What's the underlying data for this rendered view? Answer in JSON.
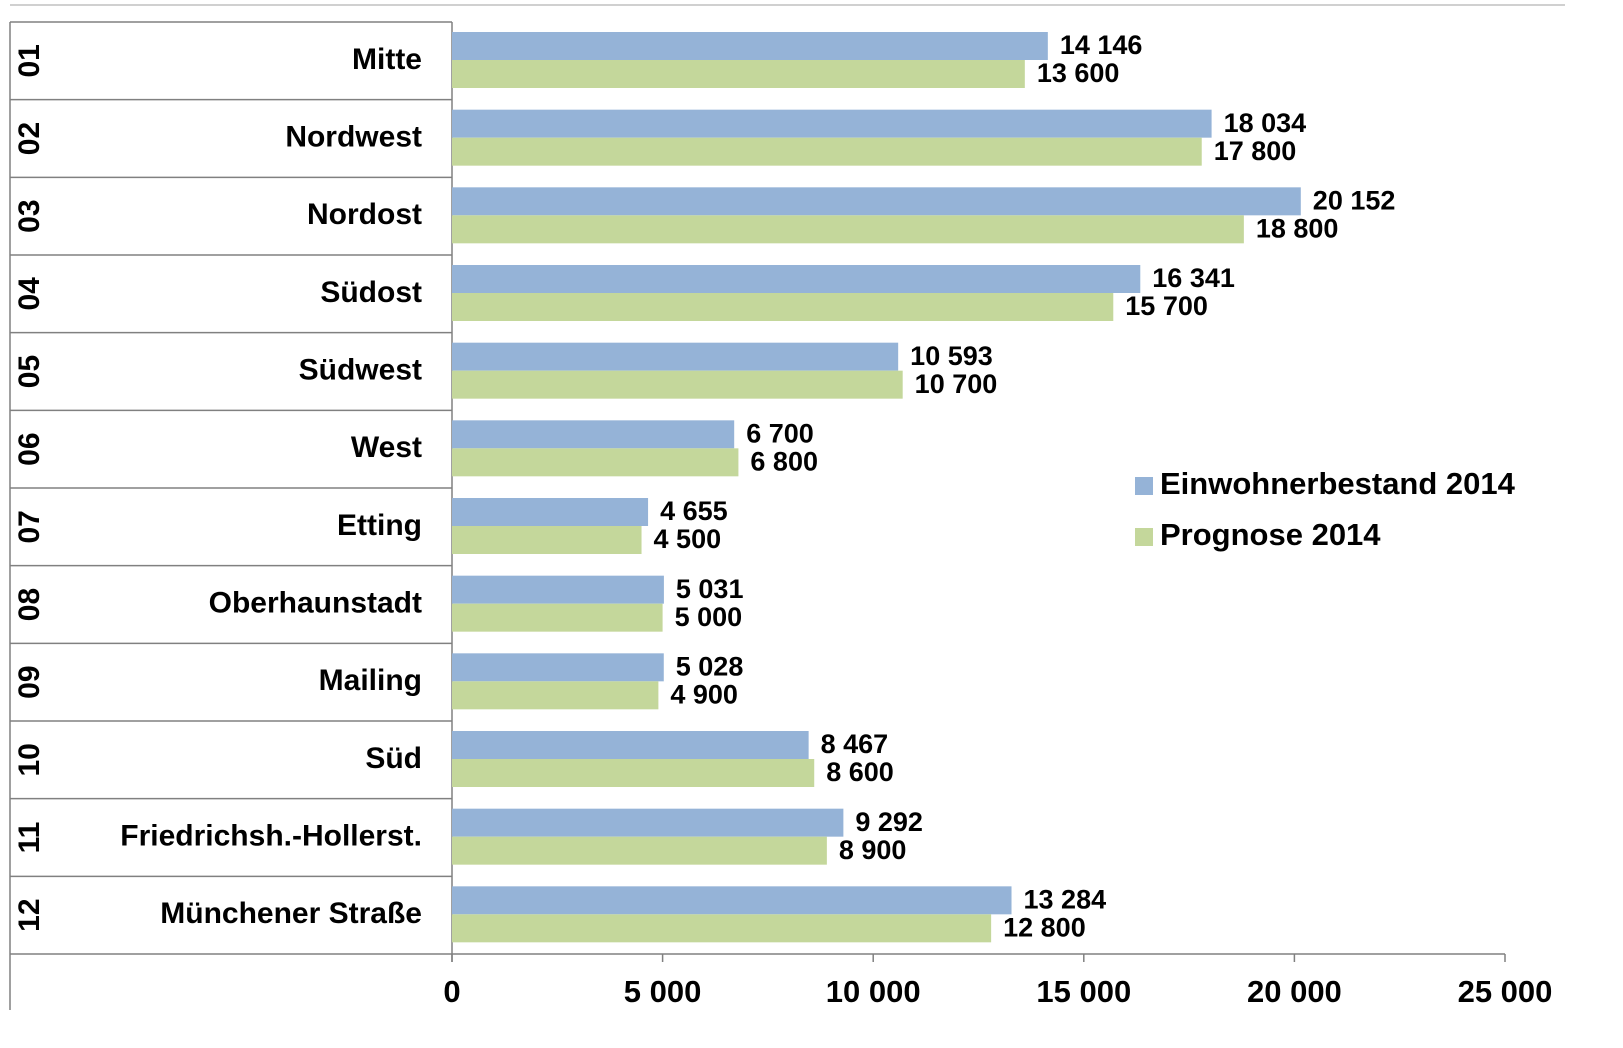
{
  "chart_data": {
    "type": "barh",
    "category_codes": [
      "01",
      "02",
      "03",
      "04",
      "05",
      "06",
      "07",
      "08",
      "09",
      "10",
      "11",
      "12"
    ],
    "categories": [
      "Mitte",
      "Nordwest",
      "Nordost",
      "Südost",
      "Südwest",
      "West",
      "Etting",
      "Oberhaunstadt",
      "Mailing",
      "Süd",
      "Friedrichsh.-Hollerst.",
      "Münchener Straße"
    ],
    "series": [
      {
        "name": "Einwohnerbestand 2014",
        "color": "#95b3d7",
        "values": [
          14146,
          18034,
          20152,
          16341,
          10593,
          6700,
          4655,
          5031,
          5028,
          8467,
          9292,
          13284
        ],
        "value_labels": [
          "14 146",
          "18 034",
          "20 152",
          "16 341",
          "10 593",
          "6 700",
          "4 655",
          "5 031",
          "5 028",
          "8 467",
          "9 292",
          "13 284"
        ]
      },
      {
        "name": "Prognose 2014",
        "color": "#c4d79b",
        "values": [
          13600,
          17800,
          18800,
          15700,
          10700,
          6800,
          4500,
          5000,
          4900,
          8600,
          8900,
          12800
        ],
        "value_labels": [
          "13 600",
          "17 800",
          "18 800",
          "15 700",
          "10 700",
          "6 800",
          "4 500",
          "5 000",
          "4 900",
          "8 600",
          "8 900",
          "12 800"
        ]
      }
    ],
    "xlim": [
      0,
      25000
    ],
    "xticks": [
      0,
      {
        "value": 5000,
        "label": "5 000"
      },
      {
        "value": 10000,
        "label": "10 000"
      },
      {
        "value": 15000,
        "label": "15 000"
      },
      {
        "value": 20000,
        "label": "20 000"
      },
      {
        "value": 25000,
        "label": "25 000"
      }
    ],
    "legend": "right"
  }
}
